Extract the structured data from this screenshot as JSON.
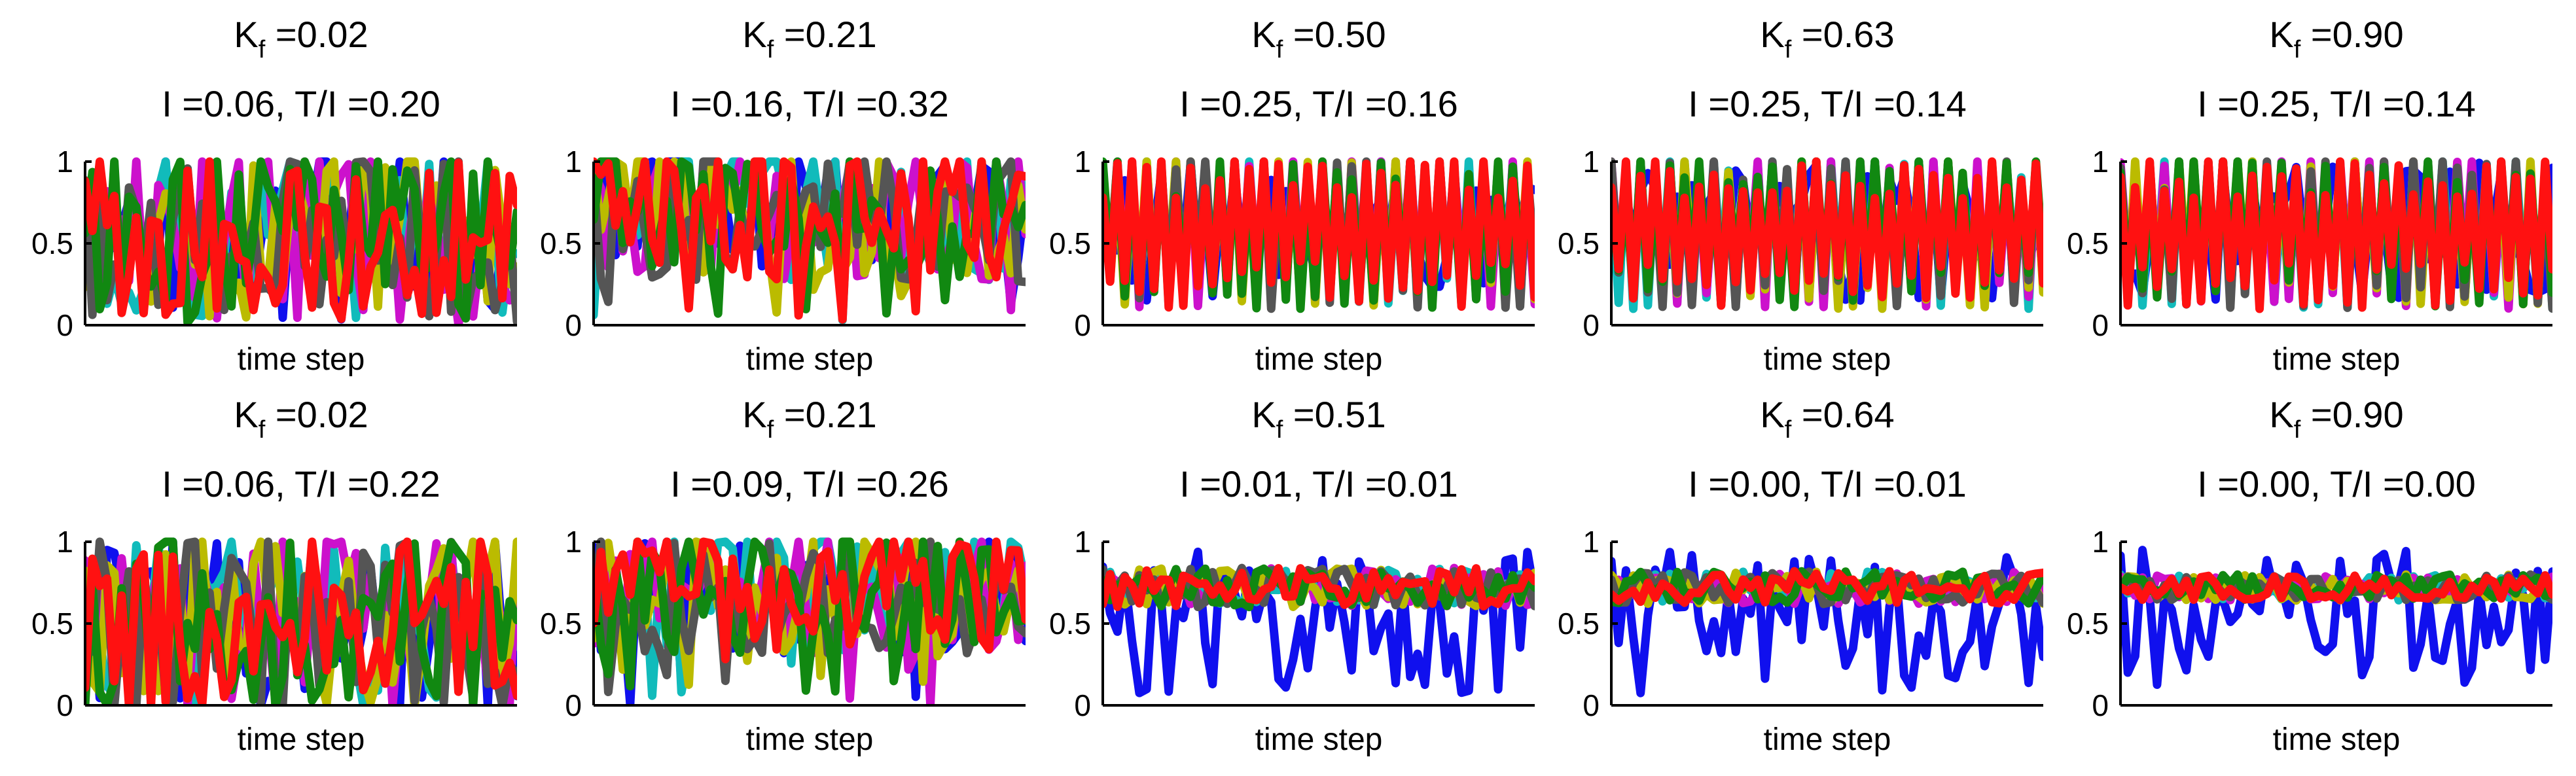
{
  "chart_data": {
    "type": "line",
    "layout": "2 rows x 5 columns of small-multiple line panels",
    "xlabel": "time step",
    "ylim": [
      0,
      1
    ],
    "yticks": [
      "0",
      "0.5",
      "1"
    ],
    "colors": {
      "blue": "#1010ee",
      "cyan": "#11bbbb",
      "magenta": "#cc11cc",
      "olive": "#bbbb00",
      "gray": "#555555",
      "green": "#118811",
      "red": "#ff1111"
    },
    "panels": [
      {
        "kf_label": "K",
        "kf_sub": "f",
        "kf_value": " =0.02",
        "stats": "I =0.06, T/I =0.20",
        "regime": "chaotic",
        "spread": 0.95,
        "focus": 0.55
      },
      {
        "kf_label": "K",
        "kf_sub": "f",
        "kf_value": " =0.21",
        "stats": "I =0.16, T/I =0.32",
        "regime": "chaotic",
        "spread": 0.8,
        "focus": 0.7
      },
      {
        "kf_label": "K",
        "kf_sub": "f",
        "kf_value": " =0.50",
        "stats": "I =0.25, T/I =0.16",
        "regime": "sync",
        "spread": 0.55,
        "focus": 0.7
      },
      {
        "kf_label": "K",
        "kf_sub": "f",
        "kf_value": " =0.63",
        "stats": "I =0.25, T/I =0.14",
        "regime": "sync",
        "spread": 0.5,
        "focus": 0.7
      },
      {
        "kf_label": "K",
        "kf_sub": "f",
        "kf_value": " =0.90",
        "stats": "I =0.25, T/I =0.14",
        "regime": "sync",
        "spread": 0.5,
        "focus": 0.65
      },
      {
        "kf_label": "K",
        "kf_sub": "f",
        "kf_value": " =0.02",
        "stats": "I =0.06, T/I =0.22",
        "regime": "chaotic",
        "spread": 1.0,
        "focus": 0.5
      },
      {
        "kf_label": "K",
        "kf_sub": "f",
        "kf_value": " =0.21",
        "stats": "I =0.09, T/I =0.26",
        "regime": "chaotic",
        "spread": 0.7,
        "focus": 0.7
      },
      {
        "kf_label": "K",
        "kf_sub": "f",
        "kf_value": " =0.51",
        "stats": "I =0.01, T/I =0.01",
        "regime": "flat",
        "spread": 0.12,
        "focus": 0.72
      },
      {
        "kf_label": "K",
        "kf_sub": "f",
        "kf_value": " =0.64",
        "stats": "I =0.00, T/I =0.01",
        "regime": "flat",
        "spread": 0.1,
        "focus": 0.72
      },
      {
        "kf_label": "K",
        "kf_sub": "f",
        "kf_value": " =0.90",
        "stats": "I =0.00, T/I =0.00",
        "regime": "flat",
        "spread": 0.08,
        "focus": 0.72
      }
    ]
  }
}
